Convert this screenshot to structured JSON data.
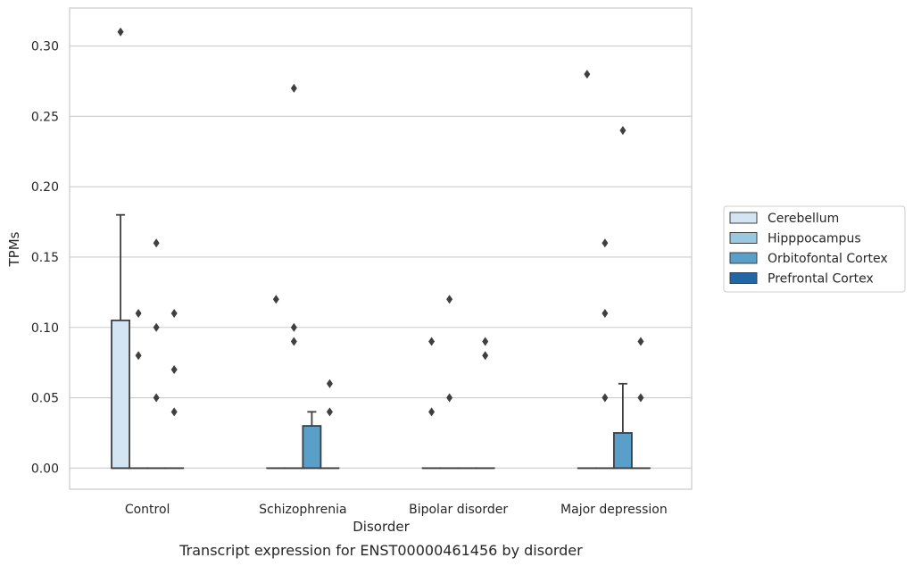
{
  "chart_data": {
    "type": "box",
    "caption": "Transcript expression for ENST00000461456 by disorder",
    "xlabel": "Disorder",
    "ylabel": "TPMs",
    "ylim": [
      -0.015,
      0.327
    ],
    "yticks": [
      0.0,
      0.05,
      0.1,
      0.15,
      0.2,
      0.25,
      0.3
    ],
    "ytick_labels": [
      "0.00",
      "0.05",
      "0.10",
      "0.15",
      "0.20",
      "0.25",
      "0.30"
    ],
    "grid": "horizontal",
    "legend_position": "right",
    "categories": [
      "Control",
      "Schizophrenia",
      "Bipolar disorder",
      "Major depression"
    ],
    "series": [
      {
        "name": "Cerebellum",
        "color": "#d3e4f3",
        "boxes": [
          {
            "q1": 0.0,
            "median": 0.0,
            "q3": 0.105,
            "whisker_low": 0.0,
            "whisker_high": 0.18,
            "outliers": [
              0.31
            ]
          },
          {
            "q1": 0.0,
            "median": 0.0,
            "q3": 0.0,
            "whisker_low": 0.0,
            "whisker_high": 0.0,
            "outliers": [
              0.12
            ]
          },
          {
            "q1": 0.0,
            "median": 0.0,
            "q3": 0.0,
            "whisker_low": 0.0,
            "whisker_high": 0.0,
            "outliers": [
              0.09,
              0.04
            ]
          },
          {
            "q1": 0.0,
            "median": 0.0,
            "q3": 0.0,
            "whisker_low": 0.0,
            "whisker_high": 0.0,
            "outliers": [
              0.28
            ]
          }
        ]
      },
      {
        "name": "Hipppocampus",
        "color": "#9ac8e0",
        "boxes": [
          {
            "q1": 0.0,
            "median": 0.0,
            "q3": 0.0,
            "whisker_low": 0.0,
            "whisker_high": 0.0,
            "outliers": [
              0.11,
              0.08
            ]
          },
          {
            "q1": 0.0,
            "median": 0.0,
            "q3": 0.0,
            "whisker_low": 0.0,
            "whisker_high": 0.0,
            "outliers": [
              0.27,
              0.1,
              0.09
            ]
          },
          {
            "q1": 0.0,
            "median": 0.0,
            "q3": 0.0,
            "whisker_low": 0.0,
            "whisker_high": 0.0,
            "outliers": [
              0.12,
              0.05
            ]
          },
          {
            "q1": 0.0,
            "median": 0.0,
            "q3": 0.0,
            "whisker_low": 0.0,
            "whisker_high": 0.0,
            "outliers": [
              0.16,
              0.11,
              0.05
            ]
          }
        ]
      },
      {
        "name": "Orbitofontal Cortex",
        "color": "#5a9fca",
        "boxes": [
          {
            "q1": 0.0,
            "median": 0.0,
            "q3": 0.0,
            "whisker_low": 0.0,
            "whisker_high": 0.0,
            "outliers": [
              0.16,
              0.1,
              0.05
            ]
          },
          {
            "q1": 0.0,
            "median": 0.0,
            "q3": 0.03,
            "whisker_low": 0.0,
            "whisker_high": 0.04,
            "outliers": []
          },
          {
            "q1": 0.0,
            "median": 0.0,
            "q3": 0.0,
            "whisker_low": 0.0,
            "whisker_high": 0.0,
            "outliers": []
          },
          {
            "q1": 0.0,
            "median": 0.0,
            "q3": 0.025,
            "whisker_low": 0.0,
            "whisker_high": 0.06,
            "outliers": [
              0.24
            ]
          }
        ]
      },
      {
        "name": "Prefrontal Cortex",
        "color": "#2366a6",
        "boxes": [
          {
            "q1": 0.0,
            "median": 0.0,
            "q3": 0.0,
            "whisker_low": 0.0,
            "whisker_high": 0.0,
            "outliers": [
              0.11,
              0.07,
              0.04
            ]
          },
          {
            "q1": 0.0,
            "median": 0.0,
            "q3": 0.0,
            "whisker_low": 0.0,
            "whisker_high": 0.0,
            "outliers": [
              0.06,
              0.04
            ]
          },
          {
            "q1": 0.0,
            "median": 0.0,
            "q3": 0.0,
            "whisker_low": 0.0,
            "whisker_high": 0.0,
            "outliers": [
              0.09,
              0.08
            ]
          },
          {
            "q1": 0.0,
            "median": 0.0,
            "q3": 0.0,
            "whisker_low": 0.0,
            "whisker_high": 0.0,
            "outliers": [
              0.09,
              0.05
            ]
          }
        ]
      }
    ]
  }
}
